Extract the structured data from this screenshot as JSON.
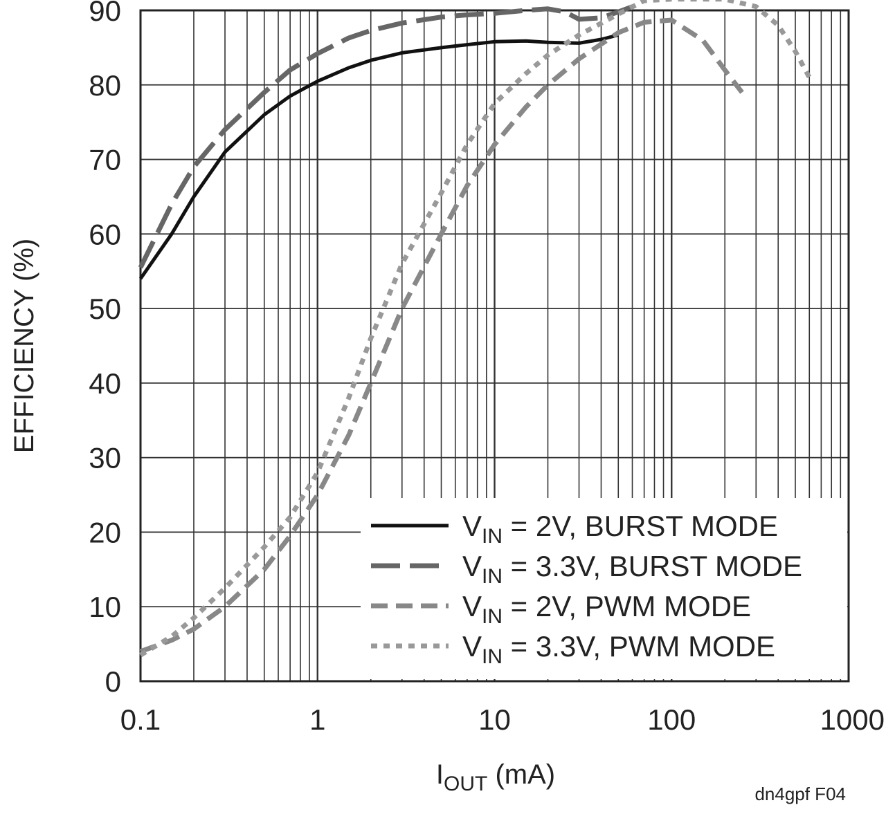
{
  "chart_data": {
    "type": "line",
    "title": "",
    "xlabel": {
      "main": "I",
      "sub": "OUT",
      "suffix": " (mA)"
    },
    "ylabel": "EFFICIENCY (%)",
    "x_scale": "log",
    "xlim": [
      0.1,
      1000
    ],
    "ylim": [
      0,
      90
    ],
    "grid": true,
    "legend_position": "bottom-right",
    "x_tick_labels": [
      "0.1",
      "1",
      "10",
      "100",
      "1000"
    ],
    "y_tick_labels": [
      "0",
      "10",
      "20",
      "30",
      "40",
      "50",
      "60",
      "70",
      "80",
      "90"
    ],
    "figure_id": "dn4gpf F04",
    "series": [
      {
        "name": "VIN = 2V, BURST MODE",
        "label_main": "V",
        "label_sub": "IN",
        "label_rest": " = 2V, BURST MODE",
        "style": "solid",
        "color": "#111111",
        "x": [
          0.1,
          0.15,
          0.2,
          0.3,
          0.5,
          0.7,
          1,
          1.5,
          2,
          3,
          5,
          7,
          10,
          15,
          20,
          30,
          40,
          50
        ],
        "y": [
          54,
          60,
          65,
          71,
          76,
          78.5,
          80.5,
          82.3,
          83.3,
          84.3,
          85,
          85.4,
          85.8,
          85.9,
          85.7,
          85.6,
          86.1,
          86.7
        ]
      },
      {
        "name": "VIN = 3.3V, BURST MODE",
        "label_main": "V",
        "label_sub": "IN",
        "label_rest": " = 3.3V, BURST MODE",
        "style": "longdash",
        "color": "#666666",
        "x": [
          0.1,
          0.15,
          0.2,
          0.3,
          0.5,
          0.7,
          1,
          1.5,
          2,
          3,
          5,
          7,
          10,
          15,
          20,
          25,
          30,
          40,
          50,
          60
        ],
        "y": [
          55.5,
          64,
          69,
          74,
          79,
          82,
          84.2,
          86.3,
          87.3,
          88.3,
          89.1,
          89.4,
          89.6,
          90,
          90.2,
          89.8,
          88.8,
          89,
          89.8,
          90.5
        ]
      },
      {
        "name": "VIN = 2V, PWM MODE",
        "label_main": "V",
        "label_sub": "IN",
        "label_rest": " = 2V, PWM MODE",
        "style": "dash",
        "color": "#888888",
        "x": [
          0.1,
          0.15,
          0.2,
          0.3,
          0.5,
          0.7,
          1,
          1.5,
          2,
          3,
          5,
          7,
          10,
          15,
          20,
          30,
          50,
          70,
          100,
          150,
          200,
          250
        ],
        "y": [
          4,
          5.5,
          7,
          10,
          15,
          19.5,
          25,
          33,
          40,
          50,
          60,
          66.5,
          72,
          77,
          80,
          83.5,
          87,
          88.4,
          88.7,
          86,
          82,
          79
        ]
      },
      {
        "name": "VIN = 3.3V, PWM MODE",
        "label_main": "V",
        "label_sub": "IN",
        "label_rest": " = 3.3V, PWM MODE",
        "style": "dot",
        "color": "#999999",
        "x": [
          0.1,
          0.15,
          0.2,
          0.3,
          0.5,
          0.7,
          1,
          1.5,
          2,
          3,
          5,
          7,
          10,
          15,
          20,
          30,
          50,
          70,
          100,
          200,
          300,
          400,
          500,
          600
        ],
        "y": [
          3.5,
          6,
          8.5,
          12.5,
          18,
          22,
          28,
          38,
          46,
          56,
          65.5,
          72,
          77.5,
          81.5,
          84,
          86.7,
          89.5,
          91.3,
          91.5,
          91.5,
          90.5,
          88,
          84.5,
          81
        ]
      }
    ]
  }
}
